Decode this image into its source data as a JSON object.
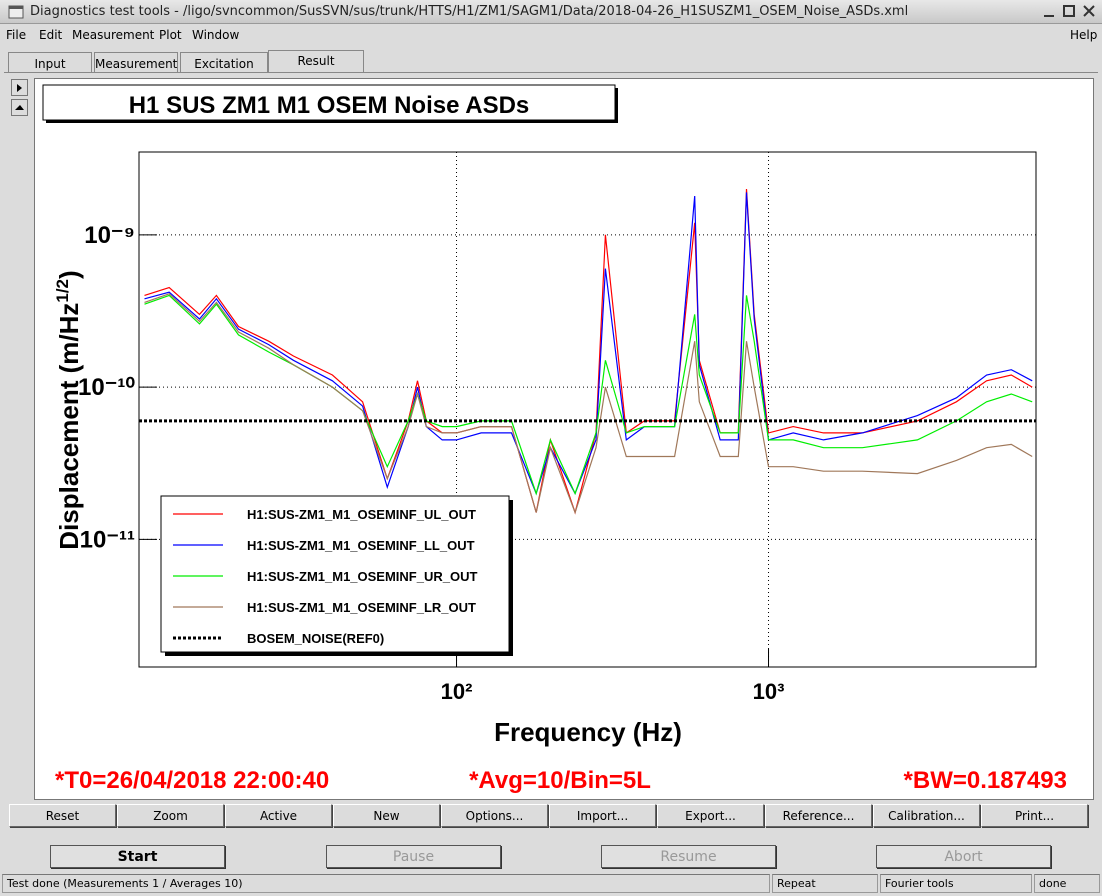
{
  "window_title": "Diagnostics test tools - /ligo/svncommon/SusSVN/sus/trunk/HTTS/H1/ZM1/SAGM1/Data/2018-04-26_H1SUSZM1_OSEM_Noise_ASDs.xml",
  "menu": [
    "File",
    "Edit",
    "Measurement",
    "Plot",
    "Window"
  ],
  "help": "Help",
  "tabs": [
    "Input",
    "Measurement",
    "Excitation",
    "Result"
  ],
  "chart_data": {
    "type": "line",
    "title": "H1 SUS ZM1 M1 OSEM Noise ASDs",
    "xlabel": "Frequency (Hz)",
    "ylabel": "Displacement (m/Hz",
    "ylabel_sup": "1/2",
    "ylabel_end": ")",
    "xlog": true,
    "ylog": true,
    "grid": true,
    "xlim": [
      9.6,
      7200
    ],
    "ylim": [
      1.45e-12,
      3.5e-09
    ],
    "xticks": [
      {
        "value": 100,
        "label": "10²"
      },
      {
        "value": 1000,
        "label": "10³"
      }
    ],
    "yticks": [
      {
        "value": 1e-11,
        "label": "10⁻¹¹"
      },
      {
        "value": 1e-10,
        "label": "10⁻¹⁰"
      },
      {
        "value": 1e-09,
        "label": "10⁻⁹"
      }
    ],
    "legend": "bottom-left",
    "x": [
      10,
      12,
      15,
      17,
      20,
      25,
      30,
      40,
      50,
      60,
      70,
      75,
      80,
      90,
      100,
      120,
      150,
      180,
      200,
      240,
      280,
      300,
      350,
      400,
      500,
      580,
      600,
      700,
      800,
      850,
      900,
      1000,
      1200,
      1500,
      2000,
      3000,
      4000,
      5000,
      6000,
      7000
    ],
    "series": [
      {
        "name": "H1:SUS-ZM1_M1_OSEMINF_UL_OUT",
        "color": "#ff0000",
        "values": [
          4e-10,
          4.5e-10,
          3e-10,
          4e-10,
          2.5e-10,
          2e-10,
          1.6e-10,
          1.2e-10,
          8e-11,
          2.5e-11,
          6e-11,
          1.1e-10,
          6e-11,
          5e-11,
          5e-11,
          5.5e-11,
          5.5e-11,
          1.5e-11,
          4.5e-11,
          1.5e-11,
          5e-11,
          1e-09,
          5e-11,
          6e-11,
          6e-11,
          1.2e-09,
          1.5e-10,
          5e-11,
          5e-11,
          2e-09,
          3e-10,
          5e-11,
          5.5e-11,
          5e-11,
          5e-11,
          6e-11,
          8e-11,
          1.1e-10,
          1.2e-10,
          1e-10
        ]
      },
      {
        "name": "H1:SUS-ZM1_M1_OSEMINF_LL_OUT",
        "color": "#0000ff",
        "values": [
          3.8e-10,
          4.2e-10,
          2.8e-10,
          3.8e-10,
          2.4e-10,
          1.9e-10,
          1.5e-10,
          1.1e-10,
          7.5e-11,
          2.2e-11,
          5.5e-11,
          1e-10,
          5.5e-11,
          4.5e-11,
          4.5e-11,
          5e-11,
          5e-11,
          2e-11,
          4e-11,
          2e-11,
          4.5e-11,
          6e-10,
          4.5e-11,
          5.5e-11,
          5.5e-11,
          1.8e-09,
          1.4e-10,
          4.5e-11,
          4.5e-11,
          1.9e-09,
          2.8e-10,
          4.5e-11,
          5e-11,
          4.5e-11,
          5e-11,
          6.5e-11,
          8.5e-11,
          1.2e-10,
          1.3e-10,
          1.1e-10
        ]
      },
      {
        "name": "H1:SUS-ZM1_M1_OSEMINF_UR_OUT",
        "color": "#00ee00",
        "values": [
          3.5e-10,
          4e-10,
          2.6e-10,
          3.5e-10,
          2.2e-10,
          1.7e-10,
          1.4e-10,
          1e-10,
          7e-11,
          3e-11,
          6e-11,
          9e-11,
          6e-11,
          5.5e-11,
          5.5e-11,
          6e-11,
          6e-11,
          2e-11,
          4.5e-11,
          2e-11,
          5e-11,
          1.5e-10,
          5e-11,
          5.5e-11,
          5.5e-11,
          3e-10,
          1.2e-10,
          5e-11,
          5e-11,
          4e-10,
          2e-10,
          4.5e-11,
          4.5e-11,
          4e-11,
          4e-11,
          4.5e-11,
          6e-11,
          8e-11,
          9e-11,
          8e-11
        ]
      },
      {
        "name": "H1:SUS-ZM1_M1_OSEMINF_LR_OUT",
        "color": "#a0785a",
        "values": [
          3.6e-10,
          4.1e-10,
          2.7e-10,
          3.6e-10,
          2.3e-10,
          1.8e-10,
          1.4e-10,
          1e-10,
          7e-11,
          2.5e-11,
          5.5e-11,
          9e-11,
          5.5e-11,
          5e-11,
          5e-11,
          5.5e-11,
          5.5e-11,
          1.5e-11,
          4e-11,
          1.5e-11,
          4e-11,
          1e-10,
          3.5e-11,
          3.5e-11,
          3.5e-11,
          2e-10,
          8e-11,
          3.5e-11,
          3.5e-11,
          2e-10,
          1e-10,
          3e-11,
          3e-11,
          2.8e-11,
          2.8e-11,
          2.7e-11,
          3.3e-11,
          4e-11,
          4.2e-11,
          3.5e-11
        ]
      },
      {
        "name": "BOSEM_NOISE(REF0)",
        "color": "#000000",
        "style": "dotted",
        "x": [
          9.6,
          7200
        ],
        "values": [
          6e-11,
          6e-11
        ]
      }
    ]
  },
  "parameters": [
    "*T0=26/04/2018 22:00:40",
    "*Avg=10/Bin=5L",
    "*BW=0.187493"
  ],
  "plot_buttons": [
    "Reset",
    "Zoom",
    "Active",
    "New",
    "Options...",
    "Import...",
    "Export...",
    "Reference...",
    "Calibration...",
    "Print..."
  ],
  "control_buttons": [
    "Start",
    "Pause",
    "Resume",
    "Abort"
  ],
  "status": [
    "Test done (Measurements 1 / Averages 10)",
    "Repeat",
    "Fourier tools",
    "done"
  ]
}
